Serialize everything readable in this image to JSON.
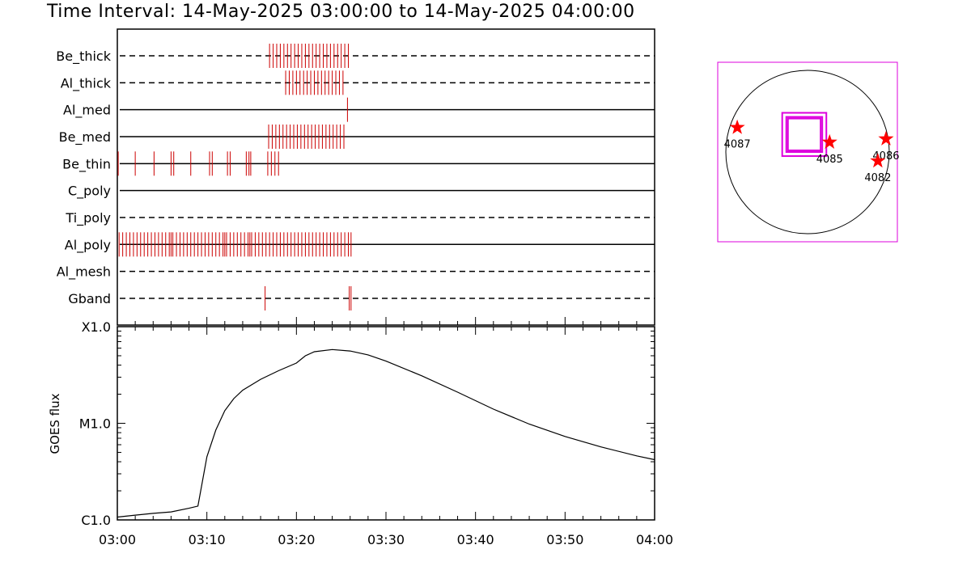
{
  "title": "Time Interval: 14-May-2025 03:00:00 to 14-May-2025 04:00:00",
  "colors": {
    "marks": "#cc0000",
    "frame": "#000000",
    "fov": "#dd00dd",
    "star": "#ff0000"
  },
  "chart_data": [
    {
      "type": "timeline",
      "x_unit": "minutes after 03:00",
      "xlim": [
        0,
        60
      ],
      "rows": [
        {
          "label": "Be_thick",
          "line_style": "dashed",
          "marks": [
            17.0,
            17.4,
            17.8,
            18.2,
            18.6,
            19.0,
            19.4,
            19.8,
            20.2,
            20.6,
            21.0,
            21.4,
            21.8,
            22.2,
            22.6,
            23.0,
            23.4,
            23.8,
            24.2,
            24.6,
            25.0,
            25.4,
            25.8
          ]
        },
        {
          "label": "Al_thick",
          "line_style": "dashed",
          "marks": [
            18.8,
            19.2,
            19.6,
            20.0,
            20.4,
            20.8,
            21.2,
            21.6,
            22.0,
            22.4,
            22.8,
            23.2,
            23.6,
            24.0,
            24.4,
            24.8,
            25.2
          ]
        },
        {
          "label": "Al_med",
          "line_style": "solid",
          "marks": [
            25.7
          ]
        },
        {
          "label": "Be_med",
          "line_style": "solid",
          "marks": [
            16.9,
            17.3,
            17.7,
            18.1,
            18.5,
            18.9,
            19.3,
            19.7,
            20.1,
            20.5,
            20.9,
            21.3,
            21.7,
            22.1,
            22.5,
            22.9,
            23.3,
            23.7,
            24.1,
            24.5,
            24.9,
            25.3
          ]
        },
        {
          "label": "Be_thin",
          "line_style": "solid",
          "marks": [
            0.1,
            2.0,
            4.1,
            6.0,
            6.3,
            8.2,
            10.3,
            10.6,
            12.3,
            12.6,
            14.4,
            14.7,
            14.9,
            16.8,
            17.2,
            17.6,
            18.0
          ]
        },
        {
          "label": "C_poly",
          "line_style": "solid",
          "marks": []
        },
        {
          "label": "Ti_poly",
          "line_style": "dashed",
          "marks": []
        },
        {
          "label": "Al_poly",
          "line_style": "solid",
          "marks": [
            0.2,
            0.6,
            1.0,
            1.4,
            1.8,
            2.2,
            2.6,
            3.0,
            3.4,
            3.8,
            4.2,
            4.6,
            5.0,
            5.4,
            5.8,
            6.0,
            6.2,
            6.6,
            7.0,
            7.4,
            7.8,
            8.2,
            8.6,
            9.0,
            9.4,
            9.8,
            10.2,
            10.6,
            11.0,
            11.4,
            11.8,
            12.0,
            12.2,
            12.6,
            13.0,
            13.4,
            13.8,
            14.2,
            14.6,
            14.8,
            15.0,
            15.4,
            15.8,
            16.2,
            16.6,
            17.0,
            17.4,
            17.8,
            18.2,
            18.6,
            19.0,
            19.4,
            19.8,
            20.2,
            20.6,
            21.0,
            21.4,
            21.8,
            22.2,
            22.6,
            23.0,
            23.4,
            23.8,
            24.2,
            24.6,
            25.0,
            25.4,
            25.8,
            26.1
          ]
        },
        {
          "label": "Al_mesh",
          "line_style": "dashed",
          "marks": []
        },
        {
          "label": "Gband",
          "line_style": "dashed",
          "marks": [
            16.5,
            25.9,
            26.1
          ]
        }
      ]
    },
    {
      "type": "line",
      "ylabel": "GOES flux",
      "yscale": "log",
      "ylim": [
        1e-06,
        0.0001
      ],
      "yticks": [
        {
          "value": 1e-06,
          "label": "C1.0"
        },
        {
          "value": 1e-05,
          "label": "M1.0"
        },
        {
          "value": 0.0001,
          "label": "X1.0"
        }
      ],
      "xlim": [
        0,
        60
      ],
      "xticks": [
        {
          "value": 0,
          "label": "03:00"
        },
        {
          "value": 10,
          "label": "03:10"
        },
        {
          "value": 20,
          "label": "03:20"
        },
        {
          "value": 30,
          "label": "03:30"
        },
        {
          "value": 40,
          "label": "03:40"
        },
        {
          "value": 50,
          "label": "03:50"
        },
        {
          "value": 60,
          "label": "04:00"
        }
      ],
      "x": [
        0,
        2,
        4,
        6,
        8,
        9,
        10,
        11,
        12,
        13,
        14,
        16,
        18,
        20,
        21,
        22,
        24,
        26,
        28,
        30,
        34,
        38,
        42,
        46,
        50,
        54,
        58,
        60
      ],
      "y": [
        1.07e-06,
        1.12e-06,
        1.17e-06,
        1.21e-06,
        1.32e-06,
        1.39e-06,
        4.5e-06,
        8.5e-06,
        1.35e-05,
        1.8e-05,
        2.2e-05,
        2.85e-05,
        3.5e-05,
        4.2e-05,
        5e-05,
        5.5e-05,
        5.8e-05,
        5.6e-05,
        5.1e-05,
        4.4e-05,
        3.1e-05,
        2.1e-05,
        1.4e-05,
        9.8e-06,
        7.3e-06,
        5.7e-06,
        4.6e-06,
        4.2e-06
      ]
    },
    {
      "type": "scatter",
      "xlim": [
        -1,
        1
      ],
      "ylim": [
        -1,
        1
      ],
      "limb": "solar disk outline",
      "regions": [
        {
          "label": "4087",
          "x": -0.86,
          "y": 0.3
        },
        {
          "label": "4085",
          "x": 0.27,
          "y": 0.12
        },
        {
          "label": "4086",
          "x": 0.96,
          "y": 0.16
        },
        {
          "label": "4082",
          "x": 0.86,
          "y": -0.11
        }
      ],
      "fov_boxes": [
        {
          "x0": -0.31,
          "x1": 0.23,
          "y0": -0.05,
          "y1": 0.48
        },
        {
          "x0": -0.26,
          "x1": 0.18,
          "y0": 0.0,
          "y1": 0.43
        },
        {
          "x0": -0.24,
          "x1": 0.16,
          "y0": 0.02,
          "y1": 0.41
        }
      ]
    }
  ]
}
